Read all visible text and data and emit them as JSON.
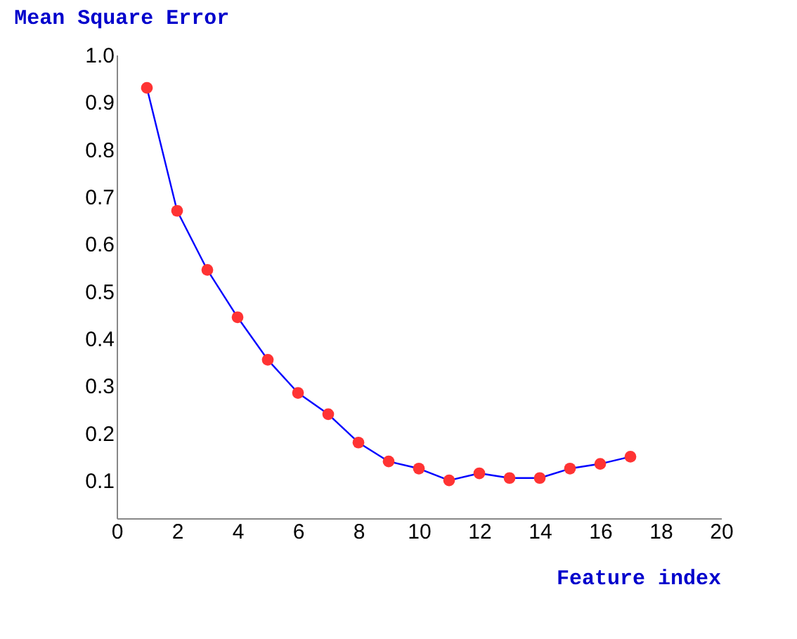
{
  "chart_data": {
    "type": "line",
    "xlabel": "Feature index",
    "ylabel": "Mean Square Error",
    "x": [
      1,
      2,
      3,
      4,
      5,
      6,
      7,
      8,
      9,
      10,
      11,
      12,
      13,
      14,
      15,
      16,
      17
    ],
    "series": [
      {
        "color": "#0000ff",
        "values": [
          0.93,
          0.67,
          0.545,
          0.445,
          0.355,
          0.285,
          0.24,
          0.18,
          0.14,
          0.125,
          0.1,
          0.115,
          0.105,
          0.105,
          0.125,
          0.135,
          0.15
        ]
      }
    ],
    "marker": "circle",
    "line_style": "solid",
    "xlim": [
      0,
      20
    ],
    "xticks": [
      0,
      2,
      4,
      6,
      8,
      10,
      12,
      14,
      16,
      18,
      20
    ],
    "ylim": [
      0.02,
      1.0
    ],
    "yticks": [
      0.1,
      0.2,
      0.3,
      0.4,
      0.5,
      0.6,
      0.7,
      0.8,
      0.9,
      {
        "value": 1,
        "label": "1.0"
      }
    ],
    "grid": false
  }
}
